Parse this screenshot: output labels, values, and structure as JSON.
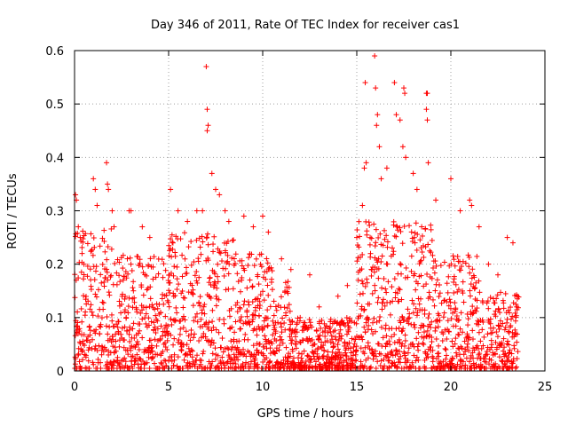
{
  "chart_data": {
    "type": "scatter",
    "title": "Day 346 of 2011, Rate Of TEC Index for receiver cas1",
    "xlabel": "GPS time / hours",
    "ylabel": "ROTI / TECUs",
    "xlim": [
      0,
      25
    ],
    "ylim": [
      0,
      0.6
    ],
    "xticks": [
      "0",
      "5",
      "10",
      "15",
      "20",
      "25"
    ],
    "xtick_values": [
      0,
      5,
      10,
      15,
      20,
      25
    ],
    "yticks": [
      "0",
      "0.1",
      "0.2",
      "0.3",
      "0.4",
      "0.5",
      "0.6"
    ],
    "ytick_values": [
      0,
      0.1,
      0.2,
      0.3,
      0.4,
      0.5,
      0.6
    ],
    "grid": true,
    "marker": "+",
    "color": "#ff0000",
    "series": [
      {
        "name": "ROTI",
        "description": "Dense cloud of several thousand points; representative sample of notable points and density envelope",
        "points": [
          [
            0.05,
            0.33
          ],
          [
            0.1,
            0.32
          ],
          [
            0.2,
            0.27
          ],
          [
            0.3,
            0.25
          ],
          [
            0.4,
            0.22
          ],
          [
            0.5,
            0.2
          ],
          [
            1.0,
            0.36
          ],
          [
            1.1,
            0.34
          ],
          [
            1.2,
            0.31
          ],
          [
            1.7,
            0.39
          ],
          [
            1.75,
            0.35
          ],
          [
            1.8,
            0.34
          ],
          [
            2.0,
            0.3
          ],
          [
            2.1,
            0.27
          ],
          [
            2.9,
            0.3
          ],
          [
            3.0,
            0.3
          ],
          [
            3.6,
            0.27
          ],
          [
            4.0,
            0.25
          ],
          [
            5.1,
            0.34
          ],
          [
            5.5,
            0.3
          ],
          [
            6.0,
            0.28
          ],
          [
            6.5,
            0.3
          ],
          [
            6.8,
            0.3
          ],
          [
            7.0,
            0.57
          ],
          [
            7.05,
            0.49
          ],
          [
            7.1,
            0.46
          ],
          [
            7.05,
            0.45
          ],
          [
            7.3,
            0.37
          ],
          [
            7.5,
            0.34
          ],
          [
            7.7,
            0.33
          ],
          [
            8.0,
            0.3
          ],
          [
            8.2,
            0.28
          ],
          [
            9.0,
            0.29
          ],
          [
            9.5,
            0.27
          ],
          [
            10.0,
            0.29
          ],
          [
            10.3,
            0.26
          ],
          [
            11.0,
            0.21
          ],
          [
            11.5,
            0.19
          ],
          [
            12.5,
            0.18
          ],
          [
            13.0,
            0.12
          ],
          [
            14.0,
            0.14
          ],
          [
            14.5,
            0.16
          ],
          [
            15.0,
            0.25
          ],
          [
            15.3,
            0.31
          ],
          [
            15.4,
            0.38
          ],
          [
            15.5,
            0.39
          ],
          [
            15.45,
            0.54
          ],
          [
            15.95,
            0.59
          ],
          [
            16.0,
            0.53
          ],
          [
            16.1,
            0.48
          ],
          [
            16.05,
            0.46
          ],
          [
            16.2,
            0.42
          ],
          [
            16.3,
            0.36
          ],
          [
            16.6,
            0.38
          ],
          [
            17.0,
            0.54
          ],
          [
            17.1,
            0.48
          ],
          [
            17.3,
            0.47
          ],
          [
            17.5,
            0.53
          ],
          [
            17.55,
            0.52
          ],
          [
            17.45,
            0.42
          ],
          [
            17.6,
            0.4
          ],
          [
            18.0,
            0.37
          ],
          [
            18.2,
            0.34
          ],
          [
            18.7,
            0.52
          ],
          [
            18.75,
            0.52
          ],
          [
            18.7,
            0.49
          ],
          [
            18.75,
            0.47
          ],
          [
            18.8,
            0.39
          ],
          [
            19.2,
            0.32
          ],
          [
            20.0,
            0.36
          ],
          [
            20.5,
            0.3
          ],
          [
            21.0,
            0.32
          ],
          [
            21.1,
            0.31
          ],
          [
            21.5,
            0.27
          ],
          [
            22.0,
            0.2
          ],
          [
            22.5,
            0.18
          ],
          [
            23.0,
            0.25
          ],
          [
            23.3,
            0.24
          ],
          [
            23.5,
            0.12
          ],
          [
            5.0,
            0.02
          ],
          [
            6.0,
            0.01
          ],
          [
            8.5,
            0.02
          ],
          [
            12.0,
            0.005
          ],
          [
            13.5,
            0.005
          ],
          [
            14.0,
            0.01
          ],
          [
            19.5,
            0.01
          ],
          [
            21.0,
            0.005
          ],
          [
            23.0,
            0.02
          ]
        ]
      }
    ]
  }
}
